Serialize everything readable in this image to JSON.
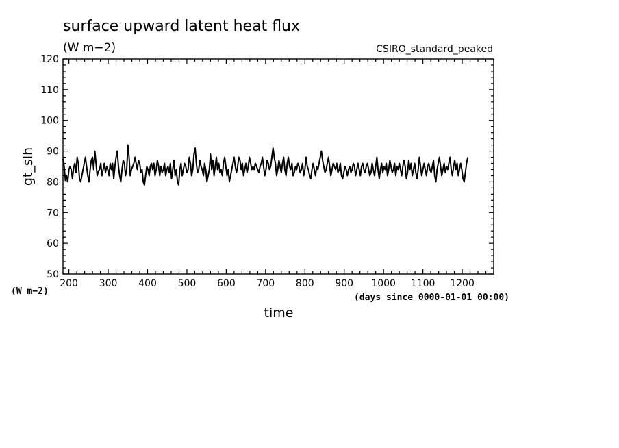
{
  "chart_data": {
    "type": "line",
    "title": "surface upward latent heat flux",
    "subtitle": "(W m−2)",
    "experiment": "CSIRO_standard_peaked",
    "xlabel": "time",
    "x_units": "(days since 0000-01-01 00:00)",
    "ylabel": "gt_slh",
    "y_units": "(W m−2)",
    "xlim": [
      185,
      1280
    ],
    "ylim": [
      50,
      120
    ],
    "xticks": [
      200,
      300,
      400,
      500,
      600,
      700,
      800,
      900,
      1000,
      1100,
      1200
    ],
    "yticks": [
      50,
      60,
      70,
      80,
      90,
      100,
      110,
      120
    ],
    "grid": false,
    "series": [
      {
        "x_start": 185,
        "x_step": 3,
        "values": [
          87.5,
          85,
          80.5,
          82,
          80,
          84,
          85,
          84,
          81,
          84.5,
          86,
          83,
          88,
          86,
          81,
          80,
          82,
          84,
          86,
          88,
          85,
          82,
          80,
          84,
          87,
          88,
          84,
          90,
          86,
          82,
          83.5,
          84,
          86,
          82,
          84,
          86,
          83,
          85,
          84,
          82,
          86,
          84,
          86,
          81,
          85,
          88,
          90,
          85,
          82,
          80,
          84,
          87,
          86,
          82,
          84,
          92,
          88,
          82,
          84,
          85,
          86,
          88,
          86,
          84,
          87,
          86,
          83,
          84,
          80,
          79,
          82,
          85,
          84,
          82,
          85,
          86,
          84,
          86,
          82,
          84,
          87,
          85,
          82,
          85,
          83,
          84,
          86,
          82,
          84,
          85,
          83,
          86,
          81,
          84,
          87,
          82,
          84,
          80,
          79,
          84,
          86,
          82,
          84,
          86,
          85,
          83,
          84,
          88,
          86,
          82,
          84,
          89,
          91,
          86,
          83,
          84,
          87,
          85,
          84,
          82,
          86,
          84,
          80,
          82,
          84,
          89,
          84,
          87,
          82,
          85,
          88,
          84,
          86,
          83,
          84,
          82,
          86,
          88,
          85,
          82,
          84,
          80,
          82,
          84,
          86,
          88,
          85,
          83,
          85,
          88,
          87,
          84,
          86,
          82,
          84,
          86,
          83,
          85,
          88,
          86,
          84,
          85,
          84,
          86,
          85,
          84,
          83,
          85,
          86,
          88,
          85,
          82,
          84,
          87,
          86,
          84,
          85,
          88,
          91,
          88,
          86,
          82,
          84,
          87,
          85,
          83,
          86,
          88,
          84,
          82,
          86,
          88,
          85,
          84,
          86,
          82,
          83,
          85,
          84,
          86,
          85,
          83,
          84,
          86,
          82,
          84,
          88,
          85,
          84,
          82,
          81,
          84,
          86,
          84,
          82,
          85,
          84,
          86,
          88,
          90,
          87,
          85,
          83,
          84,
          86,
          88,
          85,
          82,
          84,
          86,
          85,
          84,
          86,
          83,
          84,
          86,
          82,
          81,
          83,
          85,
          84,
          82,
          84,
          85,
          83,
          84,
          86,
          85,
          82,
          84,
          86,
          84,
          82,
          85,
          86,
          84,
          83,
          85,
          86,
          84,
          82,
          83,
          86,
          84,
          82,
          85,
          88,
          84,
          81,
          84,
          86,
          83,
          85,
          84,
          86,
          82,
          84,
          87,
          85,
          83,
          84,
          86,
          82,
          85,
          84,
          86,
          84,
          82,
          85,
          87,
          85,
          81,
          83,
          87,
          84,
          86,
          82,
          84,
          86,
          83,
          81,
          84,
          88,
          85,
          82,
          84,
          86,
          84,
          82,
          85,
          86,
          84,
          83,
          85,
          87,
          82,
          80,
          84,
          86,
          88,
          85,
          82,
          84,
          86,
          83,
          85,
          84,
          86,
          88,
          84,
          82,
          85,
          87,
          84,
          86,
          82,
          84,
          86,
          84,
          81,
          80,
          83,
          86,
          88
        ]
      }
    ]
  }
}
